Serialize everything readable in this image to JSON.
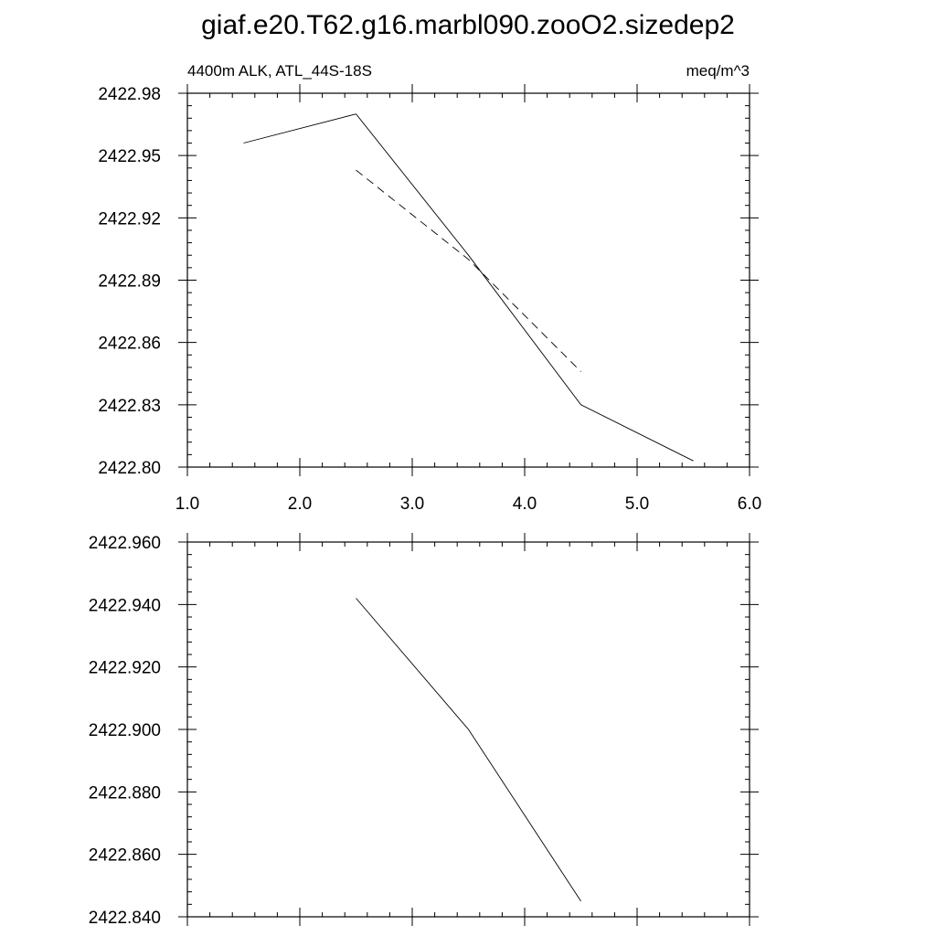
{
  "title": "giaf.e20.T62.g16.marbl090.zooO2.sizedep2",
  "chart_data": [
    {
      "type": "line",
      "left_label": "4400m ALK, ATL_44S-18S",
      "right_label": "meq/m^3",
      "xlim": [
        1.0,
        6.0
      ],
      "ylim": [
        2422.8,
        2422.98
      ],
      "x_ticks": [
        "1.0",
        "2.0",
        "3.0",
        "4.0",
        "5.0",
        "6.0"
      ],
      "y_ticks": [
        "2422.98",
        "2422.95",
        "2422.92",
        "2422.89",
        "2422.86",
        "2422.83",
        "2422.80"
      ],
      "series": [
        {
          "style": "solid",
          "x": [
            1.5,
            2.5,
            3.5,
            4.5,
            5.5
          ],
          "y": [
            2422.956,
            2422.97,
            2422.902,
            2422.83,
            2422.803
          ]
        },
        {
          "style": "dashed",
          "x": [
            2.5,
            3.5,
            4.5
          ],
          "y": [
            2422.943,
            2422.9,
            2422.846
          ]
        }
      ]
    },
    {
      "type": "line",
      "xlim": [
        1.0,
        6.0
      ],
      "ylim": [
        2422.84,
        2422.96
      ],
      "x_ticks": [],
      "y_ticks": [
        "2422.960",
        "2422.940",
        "2422.920",
        "2422.900",
        "2422.880",
        "2422.860",
        "2422.840"
      ],
      "series": [
        {
          "style": "solid",
          "x": [
            2.5,
            3.5,
            4.5
          ],
          "y": [
            2422.942,
            2422.9,
            2422.845
          ]
        }
      ]
    }
  ]
}
